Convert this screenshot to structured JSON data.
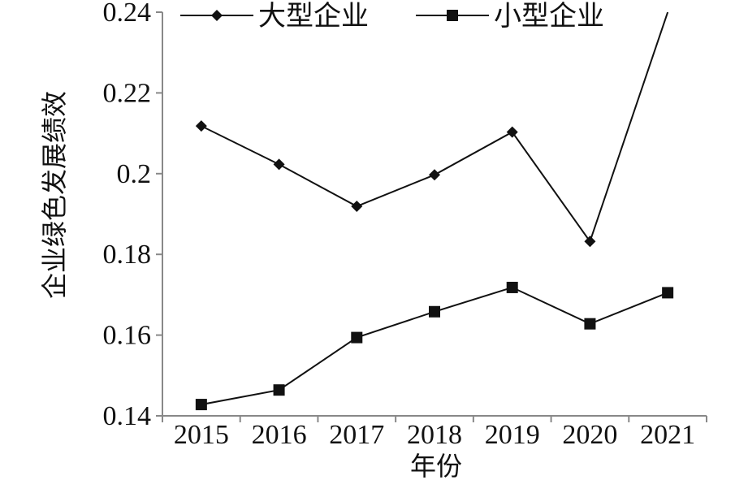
{
  "chart_data": {
    "type": "line",
    "title": "",
    "xlabel": "年份",
    "ylabel": "企业绿色发展绩效",
    "categories": [
      "2015",
      "2016",
      "2017",
      "2018",
      "2019",
      "2020",
      "2021"
    ],
    "ylim": [
      0.14,
      0.24
    ],
    "yticks": [
      "0.14",
      "0.16",
      "0.18",
      "0.2",
      "0.22",
      "0.24"
    ],
    "grid": false,
    "legend": "top",
    "series": [
      {
        "name": "大型企业",
        "marker": "diamond",
        "values": [
          0.2118,
          0.2023,
          0.1919,
          0.1997,
          0.2103,
          0.1832,
          0.24
        ]
      },
      {
        "name": "小型企业",
        "marker": "square",
        "values": [
          0.1428,
          0.1464,
          0.1594,
          0.1658,
          0.1718,
          0.1628,
          0.1705
        ]
      }
    ],
    "colors": {
      "line": "#111111",
      "axis": "#888888"
    }
  }
}
